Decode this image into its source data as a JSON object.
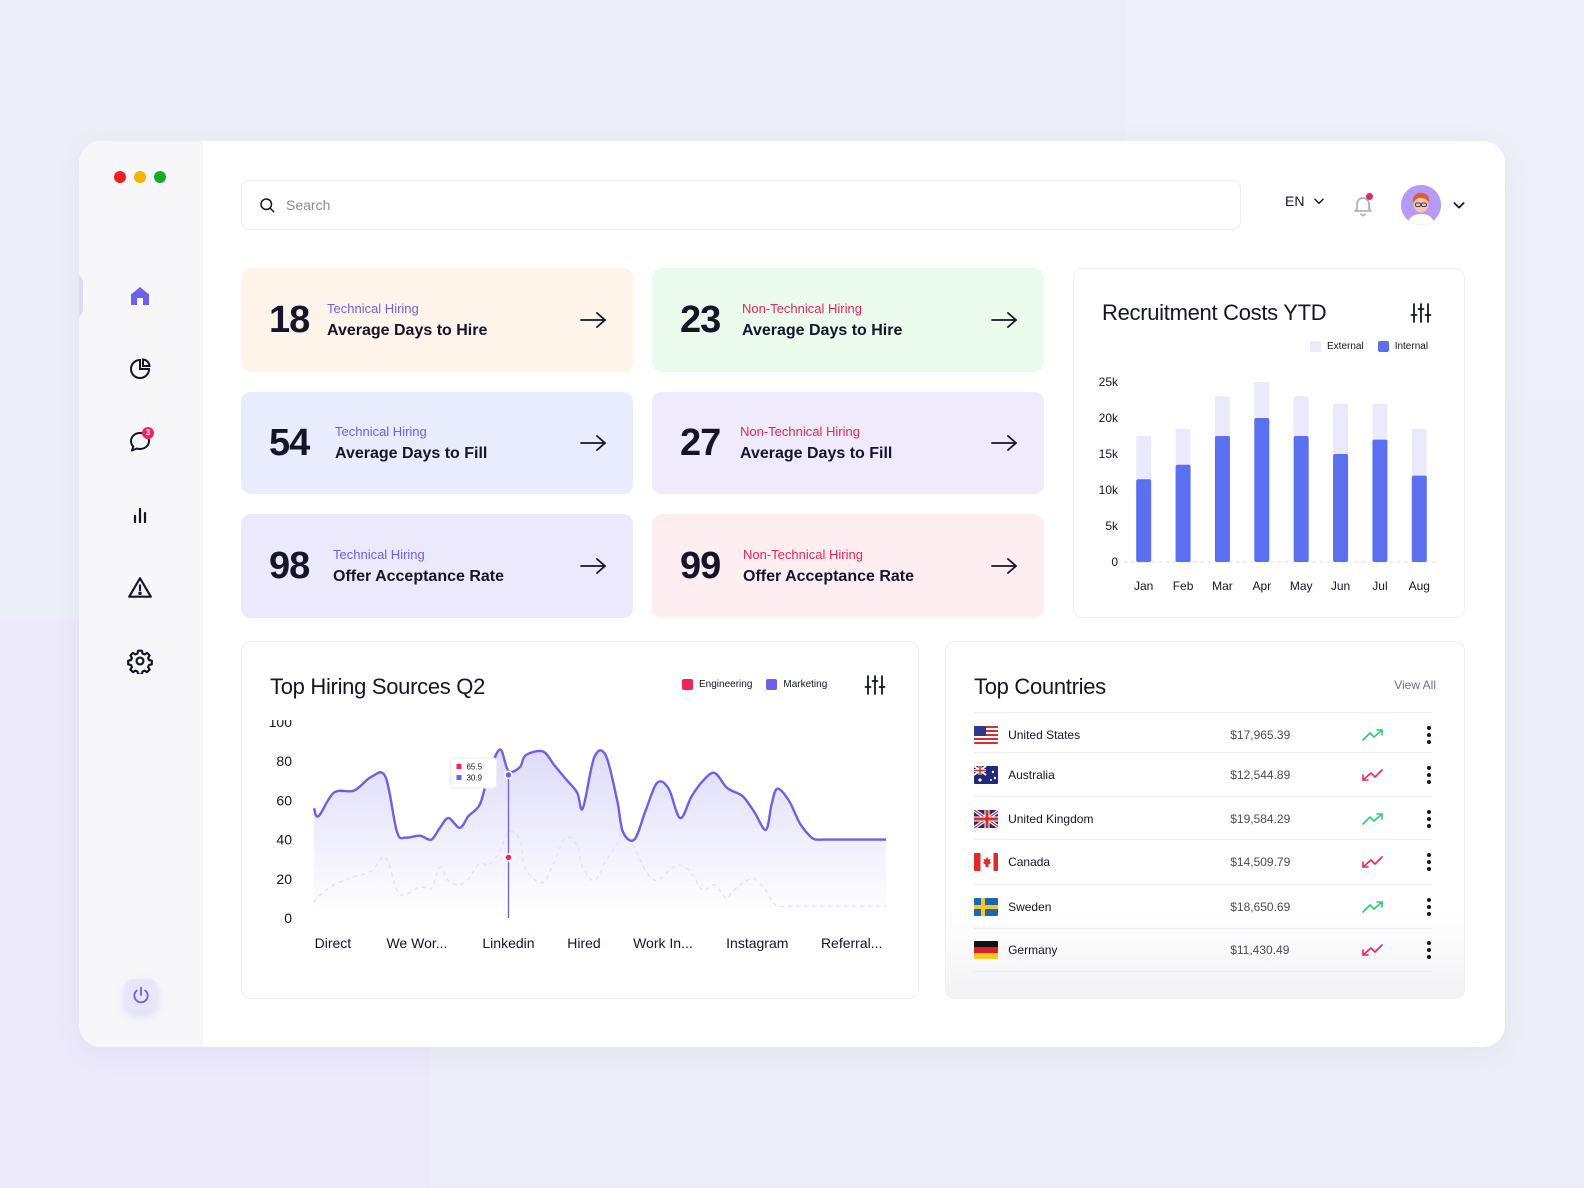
{
  "search": {
    "placeholder": "Search"
  },
  "header": {
    "language": "EN",
    "notifications_dot": true
  },
  "sidebar": {
    "items": [
      {
        "name": "home",
        "icon": "home-icon",
        "active": true
      },
      {
        "name": "reports",
        "icon": "pie-chart-icon"
      },
      {
        "name": "messages",
        "icon": "chat-icon",
        "badge": "3"
      },
      {
        "name": "analytics",
        "icon": "bar-chart-icon"
      },
      {
        "name": "alerts",
        "icon": "warning-icon"
      },
      {
        "name": "settings",
        "icon": "gear-icon"
      }
    ],
    "logout_icon": "power-icon"
  },
  "stats": [
    {
      "value": "18",
      "category": "Technical Hiring",
      "title": "Average Days to Hire"
    },
    {
      "value": "23",
      "category": "Non-Technical Hiring",
      "title": "Average Days to Hire"
    },
    {
      "value": "54",
      "category": "Technical Hiring",
      "title": "Average Days to Fill"
    },
    {
      "value": "27",
      "category": "Non-Technical Hiring",
      "title": "Average Days to Fill"
    },
    {
      "value": "98",
      "category": "Technical Hiring",
      "title": "Offer Acceptance Rate"
    },
    {
      "value": "99",
      "category": "Non-Technical Hiring",
      "title": "Offer Acceptance Rate"
    }
  ],
  "colors": {
    "accent": "#6c60e8",
    "bar_internal": "#5b6ff0",
    "bar_external": "#ebeafc",
    "engineering": "#f0245b",
    "marketing": "#6c60e8",
    "trend_up": "#2ecc71",
    "trend_down": "#f0245b"
  },
  "costs_chart": {
    "title": "Recruitment Costs YTD",
    "legend": {
      "external": "External",
      "internal": "Internal"
    }
  },
  "sources_chart": {
    "title": "Top Hiring Sources Q2",
    "legend": {
      "engineering": "Engineering",
      "marketing": "Marketing"
    },
    "tooltip": {
      "engineering": "65.5",
      "marketing": "30.9"
    }
  },
  "chart_data": [
    {
      "type": "bar",
      "title": "Recruitment Costs YTD",
      "categories": [
        "Jan",
        "Feb",
        "Mar",
        "Apr",
        "May",
        "Jun",
        "Jul",
        "Aug"
      ],
      "series": [
        {
          "name": "External",
          "values": [
            17500,
            18500,
            23000,
            25000,
            23000,
            22000,
            22000,
            18500
          ]
        },
        {
          "name": "Internal",
          "values": [
            11500,
            13500,
            17500,
            20000,
            17500,
            15000,
            17000,
            12000
          ]
        }
      ],
      "yticks": [
        "0",
        "5k",
        "10k",
        "15k",
        "20k",
        "25k"
      ],
      "ylim": [
        0,
        25000
      ],
      "stacked": "overlay"
    },
    {
      "type": "line",
      "title": "Top Hiring Sources Q2",
      "categories": [
        "Direct",
        "We Wor...",
        "Linkedin",
        "Hired",
        "Work In...",
        "Instagram",
        "Referral..."
      ],
      "x": [
        0,
        0.8,
        3.5,
        7,
        10,
        12.5,
        14.5,
        16,
        18.5,
        20.5,
        22,
        23.5,
        25.5,
        27,
        29,
        30.5,
        32.5,
        34,
        36,
        37,
        40,
        42,
        44,
        46,
        47,
        49,
        51,
        53,
        54,
        56,
        58,
        60,
        62,
        64,
        66,
        68,
        70,
        72,
        73,
        75,
        77,
        79,
        80,
        81,
        83,
        85,
        87,
        88,
        89,
        91,
        93,
        95,
        96,
        97,
        98,
        100
      ],
      "series": [
        {
          "name": "Marketing",
          "values": [
            56,
            52,
            64,
            65,
            72,
            72,
            44,
            41,
            42,
            40,
            46,
            51,
            46,
            52,
            58,
            73,
            86,
            75,
            77,
            83,
            85,
            78,
            71,
            64,
            56,
            82,
            83,
            60,
            44,
            40,
            55,
            69,
            66,
            51,
            62,
            70,
            74,
            67,
            65,
            62,
            54,
            45,
            58,
            66,
            60,
            48,
            41,
            40,
            40,
            40,
            40,
            40,
            40,
            40,
            40,
            40
          ]
        },
        {
          "name": "Engineering",
          "values": [
            8,
            11,
            17,
            21,
            24,
            31,
            14,
            12,
            16,
            15,
            26,
            19,
            17,
            20,
            28,
            27,
            34,
            44,
            40,
            25,
            18,
            29,
            41,
            37,
            26,
            19,
            29,
            38,
            44,
            36,
            24,
            19,
            24,
            27,
            23,
            14,
            17,
            10,
            13,
            18,
            20,
            14,
            9,
            6,
            6,
            6,
            6,
            6,
            6,
            6,
            6,
            6,
            6,
            6,
            6,
            6
          ]
        }
      ],
      "yticks": [
        "0",
        "20",
        "40",
        "60",
        "80",
        "100"
      ],
      "ylim": [
        0,
        100
      ]
    }
  ],
  "countries": {
    "title": "Top Countries",
    "view_all": "View All",
    "rows": [
      {
        "name": "United States",
        "amount": "$17,965.39",
        "trend": "up",
        "flag": "us-flag"
      },
      {
        "name": "Australia",
        "amount": "$12,544.89",
        "trend": "down",
        "flag": "au-flag"
      },
      {
        "name": "United Kingdom",
        "amount": "$19,584.29",
        "trend": "up",
        "flag": "uk-flag"
      },
      {
        "name": "Canada",
        "amount": "$14,509.79",
        "trend": "down",
        "flag": "ca-flag"
      },
      {
        "name": "Sweden",
        "amount": "$18,650.69",
        "trend": "up",
        "flag": "se-flag"
      },
      {
        "name": "Germany",
        "amount": "$11,430.49",
        "trend": "down",
        "flag": "de-flag"
      }
    ]
  }
}
